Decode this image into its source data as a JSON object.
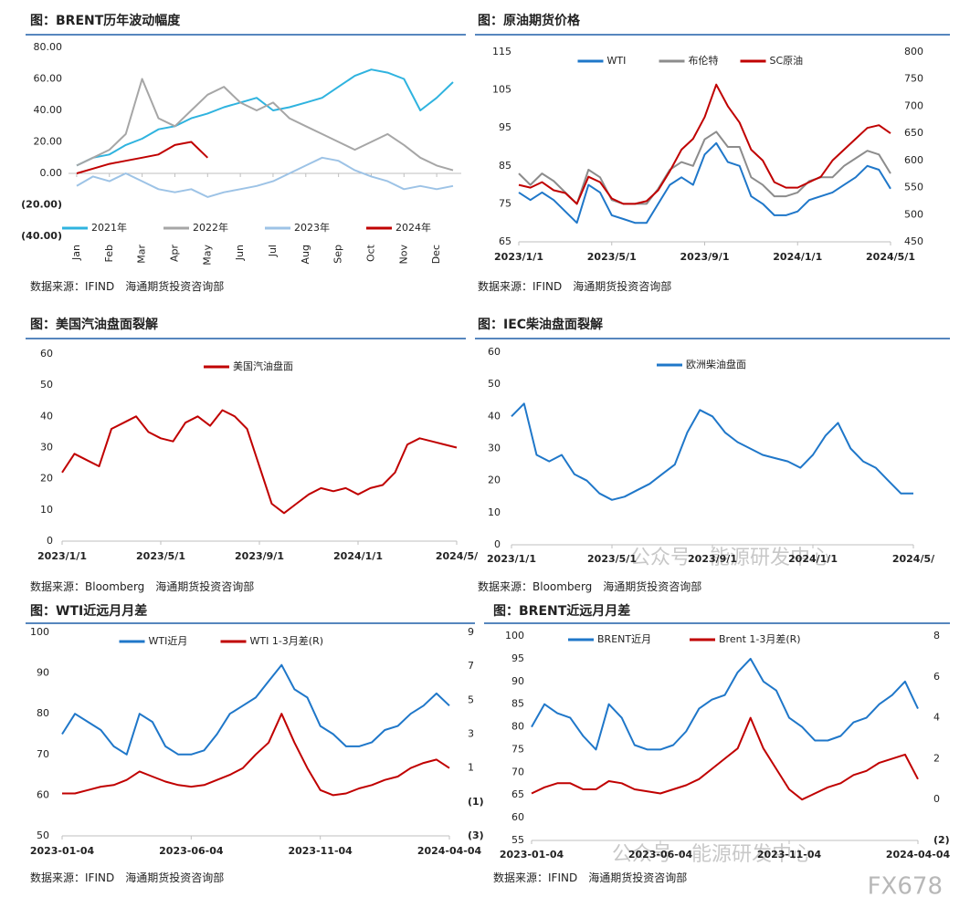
{
  "watermark": "公众号 · 能源研发中心",
  "logo": "FX678",
  "chart_data": [
    {
      "type": "line",
      "title": "图：BRENT历年波动幅度",
      "source": "数据来源：IFIND　海通期货投资咨询部",
      "legend": "bottom",
      "negative_tick_color": "#c00000",
      "categories": [
        "Jan",
        null,
        "Feb",
        null,
        "Mar",
        null,
        "Apr",
        null,
        "May",
        null,
        "Jun",
        null,
        "Jul",
        null,
        "Aug",
        null,
        "Sep",
        null,
        "Oct",
        null,
        "Nov",
        null,
        "Dec",
        null
      ],
      "ylim": [
        -40,
        80
      ],
      "yticks": [
        {
          "value": 80,
          "label": "80.00"
        },
        {
          "value": 60,
          "label": "60.00"
        },
        {
          "value": 40,
          "label": "40.00"
        },
        {
          "value": 20,
          "label": "20.00"
        },
        {
          "value": 0,
          "label": "0.00"
        },
        {
          "value": -20,
          "label": "(20.00)"
        },
        {
          "value": -40,
          "label": "(40.00)"
        }
      ],
      "series": [
        {
          "name": "2021年",
          "color": "#2fb3df",
          "values": [
            5,
            10,
            12,
            18,
            22,
            28,
            30,
            35,
            38,
            42,
            45,
            48,
            40,
            42,
            45,
            48,
            55,
            62,
            66,
            64,
            60,
            40,
            48,
            58
          ]
        },
        {
          "name": "2022年",
          "color": "#a6a6a6",
          "values": [
            5,
            10,
            15,
            25,
            60,
            35,
            30,
            40,
            50,
            55,
            45,
            40,
            45,
            35,
            30,
            25,
            20,
            15,
            20,
            25,
            18,
            10,
            5,
            2
          ]
        },
        {
          "name": "2023年",
          "color": "#9dc3e6",
          "values": [
            -8,
            -2,
            -5,
            0,
            -5,
            -10,
            -12,
            -10,
            -15,
            -12,
            -10,
            -8,
            -5,
            0,
            5,
            10,
            8,
            2,
            -2,
            -5,
            -10,
            -8,
            -10,
            -8
          ]
        },
        {
          "name": "2024年",
          "color": "#c00000",
          "values": [
            0,
            3,
            6,
            8,
            10,
            12,
            18,
            20,
            10,
            null,
            null,
            null,
            null,
            null,
            null,
            null,
            null,
            null,
            null,
            null,
            null,
            null,
            null,
            null
          ]
        }
      ]
    },
    {
      "type": "line",
      "title": "图：原油期货价格",
      "source": "数据来源：IFIND　海通期货投资咨询部",
      "legend": "top",
      "categories": [
        "2023/1/1",
        null,
        null,
        null,
        null,
        null,
        null,
        null,
        "2023/5/1",
        null,
        null,
        null,
        null,
        null,
        null,
        null,
        "2023/9/1",
        null,
        null,
        null,
        null,
        null,
        null,
        null,
        "2024/1/1",
        null,
        null,
        null,
        null,
        null,
        null,
        null,
        "2024/5/1"
      ],
      "ylim": [
        65,
        115
      ],
      "yticks": [
        65,
        75,
        85,
        95,
        105,
        115
      ],
      "y2lim": [
        450,
        800
      ],
      "y2ticks": [
        450,
        500,
        550,
        600,
        650,
        700,
        750,
        800
      ],
      "series": [
        {
          "name": "WTI",
          "color": "#1f77c9",
          "values": [
            78,
            76,
            78,
            76,
            73,
            70,
            80,
            78,
            72,
            71,
            70,
            70,
            75,
            80,
            82,
            80,
            88,
            91,
            86,
            85,
            77,
            75,
            72,
            72,
            73,
            76,
            77,
            78,
            80,
            82,
            85,
            84,
            79
          ]
        },
        {
          "name": "布伦特",
          "color": "#8c8c8c",
          "values": [
            83,
            80,
            83,
            81,
            78,
            75,
            84,
            82,
            76,
            75,
            75,
            75,
            79,
            84,
            86,
            85,
            92,
            94,
            90,
            90,
            82,
            80,
            77,
            77,
            78,
            81,
            82,
            82,
            85,
            87,
            89,
            88,
            83
          ]
        },
        {
          "name": "SC原油",
          "color": "#c00000",
          "axis": "y2",
          "values": [
            555,
            550,
            560,
            545,
            540,
            520,
            570,
            560,
            530,
            520,
            520,
            525,
            545,
            580,
            620,
            640,
            680,
            740,
            700,
            670,
            620,
            600,
            560,
            550,
            550,
            560,
            570,
            600,
            620,
            640,
            660,
            665,
            650
          ]
        }
      ]
    },
    {
      "type": "line",
      "title": "图：美国汽油盘面裂解",
      "source": "数据来源：Bloomberg　海通期货投资咨询部",
      "legend": "top",
      "categories": [
        "2023/1/1",
        null,
        null,
        null,
        null,
        null,
        null,
        null,
        "2023/5/1",
        null,
        null,
        null,
        null,
        null,
        null,
        null,
        "2023/9/1",
        null,
        null,
        null,
        null,
        null,
        null,
        null,
        "2024/1/1",
        null,
        null,
        null,
        null,
        null,
        null,
        null,
        "2024/5/"
      ],
      "ylim": [
        0,
        60
      ],
      "yticks": [
        0,
        10,
        20,
        30,
        40,
        50,
        60
      ],
      "series": [
        {
          "name": "美国汽油盘面",
          "color": "#c00000",
          "values": [
            22,
            28,
            26,
            24,
            36,
            38,
            40,
            35,
            33,
            32,
            38,
            40,
            37,
            42,
            40,
            36,
            24,
            12,
            9,
            12,
            15,
            17,
            16,
            17,
            15,
            17,
            18,
            22,
            31,
            33,
            32,
            31,
            30
          ]
        }
      ]
    },
    {
      "type": "line",
      "title": "图：IEC柴油盘面裂解",
      "source": "数据来源：Bloomberg　海通期货投资咨询部",
      "legend": "top",
      "categories": [
        "2023/1/1",
        null,
        null,
        null,
        null,
        null,
        null,
        null,
        "2023/5/1",
        null,
        null,
        null,
        null,
        null,
        null,
        null,
        "2023/9/1",
        null,
        null,
        null,
        null,
        null,
        null,
        null,
        "2024/1/1",
        null,
        null,
        null,
        null,
        null,
        null,
        null,
        "2024/5/"
      ],
      "ylim": [
        0,
        60
      ],
      "yticks": [
        0,
        10,
        20,
        30,
        40,
        50,
        60
      ],
      "series": [
        {
          "name": "欧洲柴油盘面",
          "color": "#1f77c9",
          "values": [
            40,
            44,
            28,
            26,
            28,
            22,
            20,
            16,
            14,
            15,
            17,
            19,
            22,
            25,
            35,
            42,
            40,
            35,
            32,
            30,
            28,
            27,
            26,
            24,
            28,
            34,
            38,
            30,
            26,
            24,
            20,
            16,
            16
          ]
        }
      ]
    },
    {
      "type": "line",
      "title": "图：WTI近远月月差",
      "source": "数据来源：IFIND　海通期货投资咨询部",
      "legend": "top",
      "negative_tick_color": "#c00000",
      "categories": [
        "2023-01-04",
        null,
        null,
        null,
        null,
        null,
        null,
        null,
        null,
        null,
        "2023-06-04",
        null,
        null,
        null,
        null,
        null,
        null,
        null,
        null,
        null,
        "2023-11-04",
        null,
        null,
        null,
        null,
        null,
        null,
        null,
        null,
        null,
        "2024-04-04"
      ],
      "ylim": [
        50,
        100
      ],
      "yticks": [
        50,
        60,
        70,
        80,
        90,
        100
      ],
      "y2lim": [
        -3,
        9
      ],
      "y2ticks": [
        {
          "value": -3,
          "label": "(3)"
        },
        {
          "value": -1,
          "label": "(1)"
        },
        1,
        3,
        5,
        7,
        9
      ],
      "series": [
        {
          "name": "WTI近月",
          "color": "#1f77c9",
          "values": [
            75,
            80,
            78,
            76,
            72,
            70,
            80,
            78,
            72,
            70,
            70,
            71,
            75,
            80,
            82,
            84,
            88,
            92,
            86,
            84,
            77,
            75,
            72,
            72,
            73,
            76,
            77,
            80,
            82,
            85,
            82
          ]
        },
        {
          "name": "WTI 1-3月差(R)",
          "color": "#c00000",
          "axis": "y2",
          "values": [
            -0.5,
            -0.5,
            -0.3,
            -0.1,
            0,
            0.3,
            0.8,
            0.5,
            0.2,
            0,
            -0.1,
            0,
            0.3,
            0.6,
            1,
            1.8,
            2.5,
            4.2,
            2.5,
            1,
            -0.3,
            -0.6,
            -0.5,
            -0.2,
            0,
            0.3,
            0.5,
            1,
            1.3,
            1.5,
            1
          ]
        }
      ]
    },
    {
      "type": "line",
      "title": "图：BRENT近远月月差",
      "source": "数据来源：IFIND　海通期货投资咨询部",
      "legend": "top",
      "negative_tick_color": "#c00000",
      "categories": [
        "2023-01-04",
        null,
        null,
        null,
        null,
        null,
        null,
        null,
        null,
        null,
        "2023-06-04",
        null,
        null,
        null,
        null,
        null,
        null,
        null,
        null,
        null,
        "2023-11-04",
        null,
        null,
        null,
        null,
        null,
        null,
        null,
        null,
        null,
        "2024-04-04"
      ],
      "ylim": [
        55,
        100
      ],
      "yticks": [
        55,
        60,
        65,
        70,
        75,
        80,
        85,
        90,
        95,
        100
      ],
      "y2lim": [
        -2,
        8
      ],
      "y2ticks": [
        {
          "value": -2,
          "label": "(2)"
        },
        0,
        2,
        4,
        6,
        8
      ],
      "series": [
        {
          "name": "BRENT近月",
          "color": "#1f77c9",
          "values": [
            80,
            85,
            83,
            82,
            78,
            75,
            85,
            82,
            76,
            75,
            75,
            76,
            79,
            84,
            86,
            87,
            92,
            95,
            90,
            88,
            82,
            80,
            77,
            77,
            78,
            81,
            82,
            85,
            87,
            90,
            84
          ]
        },
        {
          "name": "Brent 1-3月差(R)",
          "color": "#c00000",
          "axis": "y2",
          "values": [
            0.3,
            0.6,
            0.8,
            0.8,
            0.5,
            0.5,
            0.9,
            0.8,
            0.5,
            0.4,
            0.3,
            0.5,
            0.7,
            1,
            1.5,
            2,
            2.5,
            4,
            2.5,
            1.5,
            0.5,
            0,
            0.3,
            0.6,
            0.8,
            1.2,
            1.4,
            1.8,
            2,
            2.2,
            1
          ]
        }
      ]
    }
  ]
}
